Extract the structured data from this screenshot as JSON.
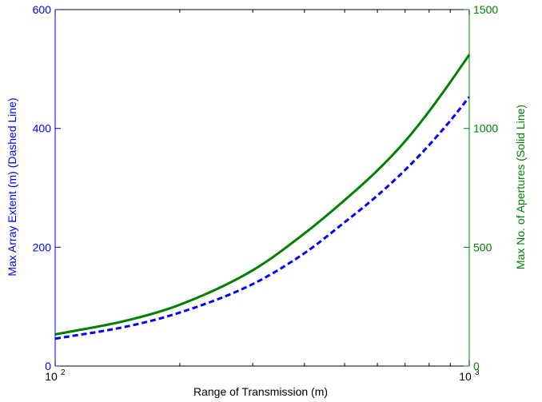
{
  "chart_data": {
    "type": "line",
    "xlabel": "Range of Transmission (m)",
    "ylabel_left": "Max Array Extent (m) (Dashed Line)",
    "ylabel_right": "Max No. of Apertures (Solid Line)",
    "x_scale": "log",
    "xlim": [
      100,
      1000
    ],
    "ylim_left": [
      0,
      600
    ],
    "ylim_right": [
      0,
      1500
    ],
    "x_ticks": [
      {
        "value": 100,
        "base": "10",
        "exp": "2"
      },
      {
        "value": 1000,
        "base": "10",
        "exp": "3"
      }
    ],
    "yticks_left": [
      0,
      200,
      400,
      600
    ],
    "yticks_right": [
      0,
      500,
      1000,
      1500
    ],
    "grid": false,
    "colors": {
      "left_axis": "#0000ff",
      "right_axis": "#008000",
      "dashed_series": "#0000ff",
      "solid_series": "#008000",
      "frame": "#000000"
    },
    "series": [
      {
        "axis": "left",
        "style": "dashed",
        "color": "#0000ff",
        "x": [
          100,
          150,
          200,
          300,
          400,
          500,
          600,
          700,
          800,
          900,
          1000
        ],
        "y": [
          46,
          67,
          90,
          138,
          190,
          242,
          287,
          330,
          372,
          413,
          453
        ]
      },
      {
        "axis": "right",
        "style": "solid",
        "color": "#008000",
        "x": [
          100,
          150,
          200,
          300,
          400,
          500,
          600,
          700,
          800,
          900,
          1000
        ],
        "y": [
          133,
          193,
          258,
          403,
          558,
          698,
          823,
          946,
          1072,
          1195,
          1310
        ]
      }
    ]
  }
}
